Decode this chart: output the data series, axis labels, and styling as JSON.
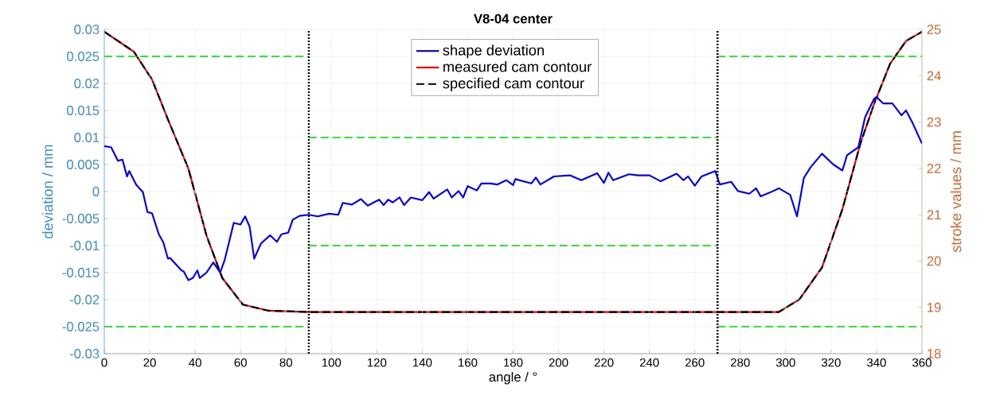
{
  "chart_data": {
    "type": "line",
    "title": "V8-04 center",
    "xlabel": "angle / °",
    "ylabel": "deviation / mm",
    "y2label": "stroke values / mm",
    "xlim": [
      0,
      360
    ],
    "xticks": [
      0,
      20,
      40,
      60,
      80,
      100,
      120,
      140,
      160,
      180,
      200,
      220,
      240,
      260,
      280,
      300,
      320,
      340,
      360
    ],
    "ylim": [
      -0.03,
      0.03
    ],
    "yticks": [
      -0.03,
      -0.025,
      -0.02,
      -0.015,
      -0.01,
      -0.005,
      0,
      0.005,
      0.01,
      0.015,
      0.02,
      0.025,
      0.03
    ],
    "y2lim": [
      18,
      25
    ],
    "y2ticks": [
      18,
      19,
      20,
      21,
      22,
      23,
      24,
      25
    ],
    "grid": true,
    "legend": "top",
    "marker": "none",
    "ref_lines": [
      {
        "axis": "x",
        "value": 90,
        "color": "#000000",
        "line_style": "dotted"
      },
      {
        "axis": "x",
        "value": 270,
        "color": "#000000",
        "line_style": "dotted"
      }
    ],
    "series": [
      {
        "name": "shape deviation",
        "color": "#0000ff",
        "line_style": "solid",
        "x": [
          0,
          3,
          6,
          8,
          10,
          11,
          14,
          17,
          19,
          21,
          24,
          26,
          28,
          29,
          34,
          35,
          37,
          39,
          41,
          42,
          45,
          48,
          51,
          53,
          57,
          60,
          62,
          64,
          66,
          69,
          73,
          76,
          78,
          81,
          83,
          86,
          90,
          94,
          99,
          103,
          105,
          109,
          113,
          116,
          121,
          123,
          125,
          127,
          130,
          132,
          135,
          140,
          143,
          145,
          151,
          153,
          156,
          158,
          160,
          164,
          166,
          170,
          173,
          177,
          180,
          181,
          188,
          190,
          192,
          198,
          205,
          210,
          217,
          220,
          222,
          224,
          231,
          235,
          240,
          245,
          252,
          255,
          257,
          260,
          263,
          269,
          271,
          276,
          279,
          284,
          287,
          289,
          293,
          297,
          302,
          305,
          308,
          311,
          316,
          321,
          325,
          327,
          332,
          335,
          339,
          340,
          343,
          347,
          351,
          353,
          356,
          360
        ],
        "values": [
          0.0084,
          0.0082,
          0.0057,
          0.0059,
          0.0028,
          0.0038,
          0.0013,
          -0.0001,
          -0.0038,
          -0.004,
          -0.0079,
          -0.0094,
          -0.0124,
          -0.0123,
          -0.0146,
          -0.0148,
          -0.0164,
          -0.016,
          -0.0146,
          -0.016,
          -0.015,
          -0.0131,
          -0.015,
          -0.0127,
          -0.0058,
          -0.0061,
          -0.0046,
          -0.0065,
          -0.0124,
          -0.0096,
          -0.0081,
          -0.0093,
          -0.0079,
          -0.0076,
          -0.0052,
          -0.0045,
          -0.0043,
          -0.0046,
          -0.0041,
          -0.0043,
          -0.0021,
          -0.0024,
          -0.0014,
          -0.0026,
          -0.0015,
          -0.0025,
          -0.0015,
          -0.002,
          -0.0011,
          -0.0025,
          -0.0011,
          -0.0016,
          -0.0001,
          -0.0013,
          0.0004,
          -0.0011,
          0.0001,
          -0.0011,
          0.001,
          0.0002,
          0.0015,
          0.0015,
          0.0013,
          0.0021,
          0.0012,
          0.0023,
          0.0015,
          0.0026,
          0.0013,
          0.0028,
          0.003,
          0.0021,
          0.0034,
          0.0016,
          0.0035,
          0.0021,
          0.0032,
          0.003,
          0.003,
          0.0019,
          0.0033,
          0.0021,
          0.0028,
          0.0011,
          0.0028,
          0.0038,
          0.0013,
          0.0018,
          0.0001,
          -0.0004,
          0.0006,
          -0.0009,
          -0.0002,
          0.0006,
          -0.0006,
          -0.0046,
          0.0025,
          0.0045,
          0.007,
          0.005,
          0.0039,
          0.0067,
          0.0082,
          0.0138,
          0.0172,
          0.0175,
          0.0163,
          0.0163,
          0.0141,
          0.015,
          0.0126,
          0.0089
        ]
      },
      {
        "name": "measured cam contour",
        "color": "#ff0000",
        "line_style": "solid",
        "axis": "y2",
        "x": [
          0,
          13,
          21,
          28,
          37,
          45,
          52,
          61,
          72,
          90,
          180,
          270,
          297,
          306,
          316,
          325,
          333,
          339,
          346,
          353,
          360
        ],
        "values": [
          24.95,
          24.52,
          23.92,
          23.06,
          22.0,
          20.55,
          19.63,
          19.06,
          18.93,
          18.9,
          18.9,
          18.9,
          18.9,
          19.17,
          19.86,
          21.12,
          22.55,
          23.4,
          24.26,
          24.75,
          24.95
        ]
      },
      {
        "name": "specified cam contour",
        "color": "#000000",
        "line_style": "dashed",
        "axis": "y2",
        "x": [
          0,
          13,
          21,
          28,
          37,
          45,
          52,
          61,
          72,
          90,
          180,
          270,
          297,
          306,
          316,
          325,
          333,
          339,
          346,
          353,
          360
        ],
        "values": [
          24.95,
          24.52,
          23.92,
          23.06,
          22.0,
          20.55,
          19.63,
          19.06,
          18.93,
          18.9,
          18.9,
          18.9,
          18.9,
          19.17,
          19.86,
          21.12,
          22.55,
          23.4,
          24.26,
          24.75,
          24.95
        ]
      },
      {
        "color": "#33e633",
        "line_style": "dashed",
        "x": [
          0,
          90
        ],
        "values": [
          0.025,
          0.025
        ]
      },
      {
        "color": "#33e633",
        "line_style": "dashed",
        "x": [
          0,
          90
        ],
        "values": [
          -0.025,
          -0.025
        ]
      },
      {
        "color": "#33e633",
        "line_style": "dashed",
        "x": [
          90,
          270
        ],
        "values": [
          0.01,
          0.01
        ]
      },
      {
        "color": "#33e633",
        "line_style": "dashed",
        "x": [
          90,
          270
        ],
        "values": [
          -0.01,
          -0.01
        ]
      },
      {
        "color": "#33e633",
        "line_style": "dashed",
        "x": [
          270,
          360
        ],
        "values": [
          0.025,
          0.025
        ]
      },
      {
        "color": "#33e633",
        "line_style": "dashed",
        "x": [
          270,
          360
        ],
        "values": [
          -0.025,
          -0.025
        ]
      }
    ]
  }
}
